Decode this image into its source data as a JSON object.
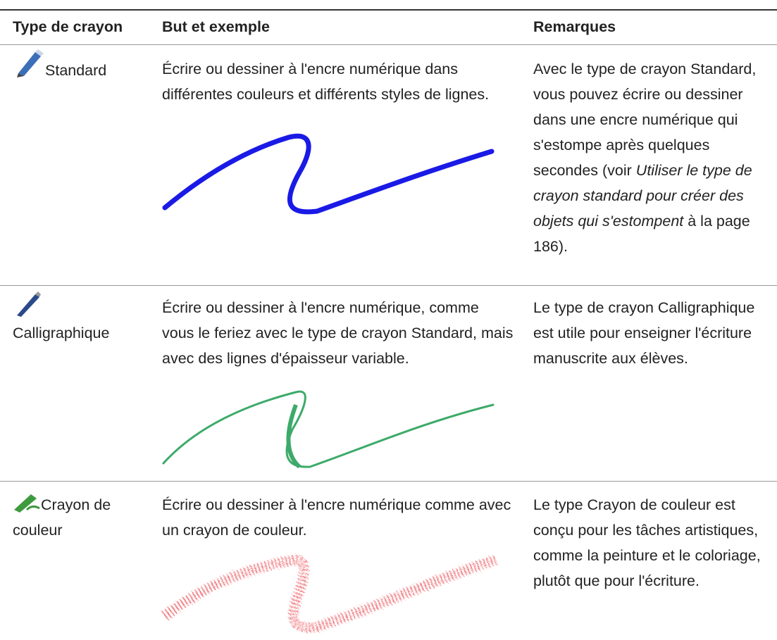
{
  "table": {
    "headers": [
      "Type de crayon",
      "But et exemple",
      "Remarques"
    ],
    "rows": [
      {
        "type": "Standard",
        "purpose": "Écrire ou dessiner à l'encre numérique dans différentes couleurs et différents styles de lignes.",
        "remark": [
          "Avec le type de crayon Standard, vous pouvez écrire ou dessiner dans une encre numérique qui s'estompe après quelques secondes (voir ",
          "Utiliser le type de crayon standard pour créer des objets qui s'estompent",
          " à la page 186)."
        ]
      },
      {
        "type": "Calligraphique",
        "purpose": "Écrire ou dessiner à l'encre numérique, comme vous le feriez avec le type de crayon Standard, mais avec des lignes d'épaisseur variable.",
        "remark": [
          "Le type de crayon Calligraphique est utile pour enseigner l'écriture manuscrite aux élèves."
        ]
      },
      {
        "type": "Crayon de couleur",
        "purpose": "Écrire ou dessiner à l'encre numérique comme avec un crayon de couleur.",
        "remark": [
          "Le type Crayon de couleur est conçu pour les tâches artistiques, comme la peinture et le coloriage, plutôt que pour l'écriture."
        ]
      }
    ]
  }
}
